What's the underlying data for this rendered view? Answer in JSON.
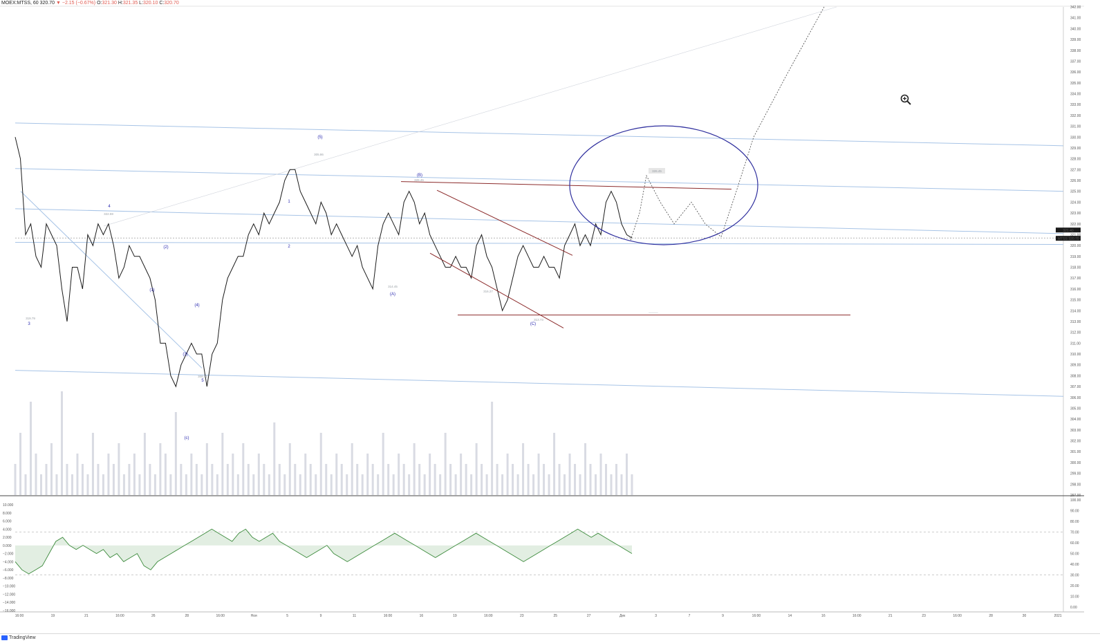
{
  "header": {
    "symbol": "MOEX:MTSS, 60",
    "last": "320.70",
    "change": "▼ −2.15 (−0.67%)",
    "o_label": "O:",
    "o": "321.30",
    "h_label": "H:",
    "h": "321.35",
    "l_label": "L:",
    "l": "320.10",
    "c_label": "C:",
    "c": "320.70"
  },
  "colors": {
    "down": "#e05a50",
    "wave_label": "#2b2bb0",
    "channel": "#a6c3e6",
    "trendline": "#8b2a2a",
    "ellipse": "#2f2f9e",
    "oscillator": "#3b8a3b",
    "oscillator_fill": "#cfe3cf",
    "volume": "#d9dbe3"
  },
  "price_axis": {
    "ticks": [
      "342.00",
      "341.00",
      "340.00",
      "339.00",
      "338.00",
      "337.00",
      "336.00",
      "335.00",
      "334.00",
      "333.00",
      "332.00",
      "331.00",
      "330.00",
      "329.00",
      "328.00",
      "327.00",
      "326.00",
      "325.00",
      "324.00",
      "323.00",
      "322.00",
      "321.00",
      "320.00",
      "319.00",
      "318.00",
      "317.00",
      "316.00",
      "315.00",
      "314.00",
      "313.00",
      "312.00",
      "311.00",
      "310.00",
      "309.00",
      "308.00",
      "307.00",
      "306.00",
      "305.00",
      "304.00",
      "303.00",
      "302.00",
      "301.00",
      "300.00",
      "299.00",
      "298.00",
      "297.00"
    ],
    "last_label": "MTSS",
    "last_price": "320.70",
    "prev_price": "321.40"
  },
  "osc_axis_left": [
    "10.000",
    "8.000",
    "6.000",
    "4.000",
    "2.000",
    "0.000",
    "−2.000",
    "−4.000",
    "−6.000",
    "−8.000",
    "−10.000",
    "−12.000",
    "−14.000",
    "−16.000"
  ],
  "osc_axis_right": [
    "100.00",
    "90.00",
    "80.00",
    "70.00",
    "60.00",
    "50.00",
    "40.00",
    "30.00",
    "20.00",
    "10.00",
    "0.00"
  ],
  "time_axis": [
    "16:00",
    "19",
    "21",
    "16:00",
    "26",
    "28",
    "16:00",
    "Ноя",
    "5",
    "9",
    "11",
    "16:00",
    "16",
    "19",
    "16:00",
    "23",
    "25",
    "27",
    "Дек",
    "3",
    "7",
    "9",
    "16:00",
    "14",
    "16",
    "16:00",
    "21",
    "23",
    "16:00",
    "28",
    "30",
    "2021"
  ],
  "wave_labels": [
    "3",
    "4",
    "5",
    "(1)",
    "(2)",
    "(3)",
    "(4)",
    "(5)",
    "1",
    "2",
    "(A)",
    "(B)",
    "(C)",
    "(c)"
  ],
  "price_labels": [
    "319.79",
    "322.59",
    "308.93",
    "305.86",
    "314.45",
    "316.27",
    "326.45",
    "313.73"
  ],
  "target_label": "326.45",
  "support_label": "———",
  "chart_data": {
    "type": "line",
    "title": "MOEX:MTSS, 60",
    "ylim": [
      297,
      342
    ],
    "close_series": [
      330,
      328,
      321,
      322,
      319,
      318,
      322,
      321,
      320,
      316,
      313,
      318,
      318,
      316,
      321,
      320,
      322,
      321,
      322,
      320,
      317,
      318,
      320,
      319,
      319,
      318,
      317,
      315,
      311,
      311,
      308,
      307,
      309,
      310,
      311,
      310,
      310,
      307,
      310,
      311,
      315,
      317,
      318,
      319,
      319,
      321,
      322,
      321,
      323,
      322,
      323,
      324,
      326,
      327,
      327,
      325,
      324,
      323,
      322,
      324,
      323,
      321,
      322,
      321,
      320,
      319,
      320,
      318,
      317,
      316,
      320,
      322,
      323,
      322,
      321,
      324,
      325,
      324,
      322,
      323,
      321,
      320,
      319,
      318,
      318,
      319,
      318,
      318,
      317,
      320,
      321,
      319,
      318,
      316,
      314,
      315,
      317,
      319,
      320,
      319,
      318,
      318,
      319,
      318,
      318,
      317,
      320,
      321,
      322,
      320,
      321,
      320,
      322,
      321,
      324,
      325,
      324,
      322,
      321,
      320.7
    ],
    "volume_series": [
      3,
      6,
      2,
      9,
      4,
      2,
      3,
      5,
      2,
      10,
      3,
      2,
      4,
      3,
      2,
      6,
      3,
      2,
      4,
      3,
      5,
      2,
      3,
      4,
      2,
      6,
      3,
      2,
      5,
      4,
      2,
      8,
      3,
      2,
      4,
      3,
      2,
      5,
      3,
      2,
      6,
      3,
      4,
      2,
      5,
      3,
      2,
      4,
      3,
      2,
      7,
      3,
      2,
      5,
      3,
      2,
      4,
      3,
      2,
      6,
      3,
      2,
      4,
      3,
      2,
      5,
      3,
      2,
      4,
      3,
      2,
      6,
      3,
      2,
      4,
      3,
      2,
      5,
      3,
      2,
      4,
      3,
      2,
      6,
      3,
      2,
      4,
      3,
      2,
      5,
      3,
      2,
      9,
      3,
      2,
      4,
      3,
      2,
      5,
      3,
      2,
      4,
      3,
      2,
      6,
      3,
      2,
      4,
      3,
      2,
      5,
      3,
      2,
      4,
      3,
      2,
      3,
      2,
      4,
      2
    ],
    "oscillator_series": [
      -4,
      -6,
      -7,
      -6,
      -5,
      -2,
      1,
      2,
      0,
      -1,
      0,
      -1,
      -2,
      -1,
      -3,
      -2,
      -4,
      -3,
      -2,
      -5,
      -6,
      -4,
      -3,
      -2,
      -1,
      0,
      1,
      2,
      3,
      4,
      3,
      2,
      1,
      3,
      4,
      2,
      1,
      2,
      3,
      1,
      0,
      -1,
      -2,
      -3,
      -2,
      -1,
      0,
      -2,
      -3,
      -4,
      -3,
      -2,
      -1,
      0,
      1,
      2,
      3,
      2,
      1,
      0,
      -1,
      -2,
      -3,
      -2,
      -1,
      0,
      1,
      2,
      3,
      2,
      1,
      0,
      -1,
      -2,
      -3,
      -4,
      -3,
      -2,
      -1,
      0,
      1,
      2,
      3,
      4,
      3,
      2,
      3,
      2,
      1,
      0,
      -1,
      -2
    ],
    "forecast_path": [
      320.5,
      323,
      326.45,
      324,
      322,
      324,
      322,
      320.8,
      325,
      330,
      336,
      342
    ],
    "support_level": 313.6
  }
}
